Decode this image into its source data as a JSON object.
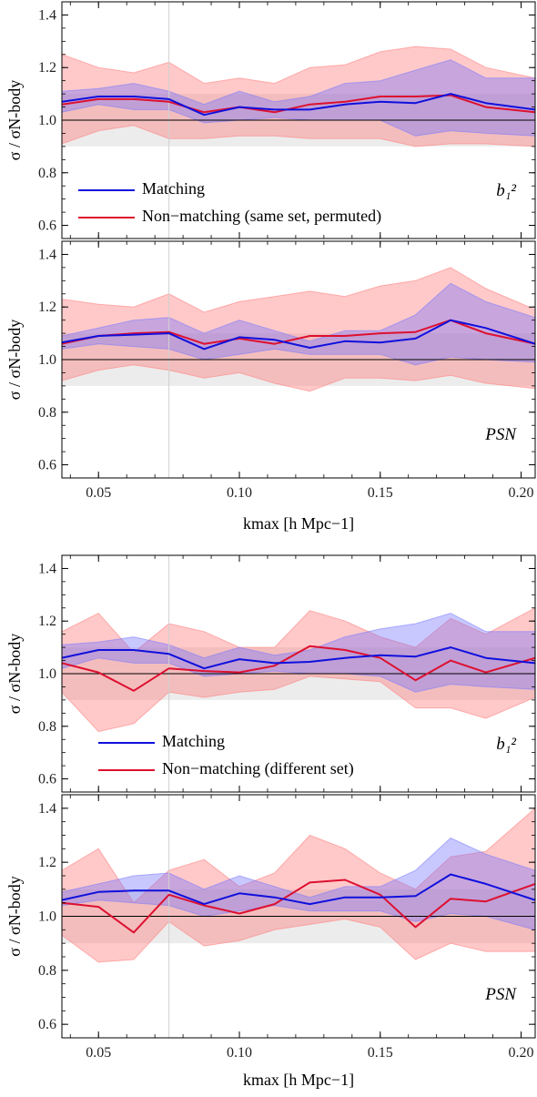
{
  "chart_data": [
    {
      "type": "line",
      "panel_label": "b₁²",
      "ylabel": "σ / σN-body",
      "xlim": [
        0.037,
        0.205
      ],
      "ylim": [
        0.55,
        1.45
      ],
      "xticks": [
        "0.05",
        "0.10",
        "0.15",
        "0.20"
      ],
      "yticks": [
        "0.6",
        "0.8",
        "1.0",
        "1.2",
        "1.4"
      ],
      "x": [
        0.037,
        0.05,
        0.0625,
        0.075,
        0.0875,
        0.1,
        0.1125,
        0.125,
        0.1375,
        0.15,
        0.1625,
        0.175,
        0.1875,
        0.205
      ],
      "legend": {
        "position": "lower-left",
        "entries": [
          "Matching",
          "Non−matching (same set, permuted)"
        ]
      },
      "series": [
        {
          "name": "Matching",
          "color": "#1010dd",
          "values": [
            1.07,
            1.09,
            1.09,
            1.08,
            1.02,
            1.05,
            1.04,
            1.04,
            1.06,
            1.07,
            1.065,
            1.1,
            1.065,
            1.04
          ],
          "band_upper": [
            1.11,
            1.12,
            1.14,
            1.11,
            1.06,
            1.11,
            1.07,
            1.09,
            1.14,
            1.15,
            1.19,
            1.23,
            1.16,
            1.16
          ],
          "band_lower": [
            1.03,
            1.06,
            1.04,
            1.04,
            0.99,
            1.0,
            1.01,
            1.0,
            1.0,
            1.0,
            0.94,
            0.96,
            0.95,
            0.94
          ]
        },
        {
          "name": "Non−matching (same set, permuted)",
          "color": "#dd1030",
          "values": [
            1.06,
            1.08,
            1.08,
            1.07,
            1.03,
            1.05,
            1.03,
            1.06,
            1.07,
            1.09,
            1.09,
            1.095,
            1.05,
            1.03
          ],
          "band_upper": [
            1.25,
            1.2,
            1.18,
            1.22,
            1.14,
            1.16,
            1.14,
            1.2,
            1.21,
            1.26,
            1.28,
            1.27,
            1.2,
            1.16
          ],
          "band_lower": [
            0.91,
            0.96,
            0.98,
            0.93,
            0.93,
            0.94,
            0.94,
            0.93,
            0.93,
            0.93,
            0.9,
            0.91,
            0.91,
            0.9
          ]
        }
      ],
      "reference_line": 1.0,
      "grey_band": [
        0.9,
        1.1
      ],
      "vertical_marker": 0.075
    },
    {
      "type": "line",
      "panel_label": "PSN",
      "ylabel": "σ / σN-body",
      "xlabel": "kmax [h Mpc−1]",
      "xlim": [
        0.037,
        0.205
      ],
      "ylim": [
        0.55,
        1.45
      ],
      "xticks": [
        "0.05",
        "0.10",
        "0.15",
        "0.20"
      ],
      "yticks": [
        "0.6",
        "0.8",
        "1.0",
        "1.2",
        "1.4"
      ],
      "x": [
        0.037,
        0.05,
        0.0625,
        0.075,
        0.0875,
        0.1,
        0.1125,
        0.125,
        0.1375,
        0.15,
        0.1625,
        0.175,
        0.1875,
        0.205
      ],
      "series": [
        {
          "name": "Matching",
          "color": "#1010dd",
          "values": [
            1.065,
            1.09,
            1.095,
            1.1,
            1.04,
            1.085,
            1.075,
            1.045,
            1.07,
            1.065,
            1.08,
            1.15,
            1.12,
            1.06
          ],
          "band_upper": [
            1.09,
            1.12,
            1.15,
            1.16,
            1.1,
            1.15,
            1.11,
            1.07,
            1.11,
            1.11,
            1.17,
            1.29,
            1.22,
            1.16
          ],
          "band_lower": [
            1.04,
            1.06,
            1.05,
            1.04,
            1.0,
            1.02,
            1.04,
            1.02,
            1.02,
            1.02,
            0.98,
            1.01,
            1.0,
            0.99
          ]
        },
        {
          "name": "Non−matching (same set, permuted)",
          "color": "#dd1030",
          "values": [
            1.06,
            1.09,
            1.1,
            1.105,
            1.06,
            1.08,
            1.06,
            1.09,
            1.09,
            1.1,
            1.105,
            1.15,
            1.1,
            1.06
          ],
          "band_upper": [
            1.23,
            1.21,
            1.2,
            1.25,
            1.18,
            1.22,
            1.24,
            1.26,
            1.24,
            1.28,
            1.3,
            1.35,
            1.27,
            1.19
          ],
          "band_lower": [
            0.92,
            0.96,
            0.98,
            0.96,
            0.93,
            0.95,
            0.91,
            0.88,
            0.93,
            0.93,
            0.92,
            0.94,
            0.91,
            0.89
          ]
        }
      ],
      "reference_line": 1.0,
      "grey_band": [
        0.9,
        1.1
      ],
      "vertical_marker": 0.075
    },
    {
      "type": "line",
      "panel_label": "b₁²",
      "ylabel": "σ / σN-body",
      "xlim": [
        0.037,
        0.205
      ],
      "ylim": [
        0.55,
        1.45
      ],
      "xticks": [
        "0.05",
        "0.10",
        "0.15",
        "0.20"
      ],
      "yticks": [
        "0.6",
        "0.8",
        "1.0",
        "1.2",
        "1.4"
      ],
      "x": [
        0.037,
        0.05,
        0.0625,
        0.075,
        0.0875,
        0.1,
        0.1125,
        0.125,
        0.1375,
        0.15,
        0.1625,
        0.175,
        0.1875,
        0.205
      ],
      "legend": {
        "position": "lower-left",
        "entries": [
          "Matching",
          "Non−matching (different set)"
        ]
      },
      "series": [
        {
          "name": "Matching",
          "color": "#1010dd",
          "values": [
            1.06,
            1.09,
            1.09,
            1.075,
            1.02,
            1.055,
            1.04,
            1.045,
            1.06,
            1.07,
            1.065,
            1.1,
            1.06,
            1.04
          ],
          "band_upper": [
            1.11,
            1.12,
            1.14,
            1.11,
            1.06,
            1.1,
            1.07,
            1.09,
            1.14,
            1.17,
            1.19,
            1.23,
            1.16,
            1.16
          ],
          "band_lower": [
            1.02,
            1.06,
            1.04,
            1.04,
            0.99,
            1.0,
            1.01,
            1.0,
            1.0,
            0.99,
            0.93,
            0.96,
            0.95,
            0.94
          ]
        },
        {
          "name": "Non−matching (different set)",
          "color": "#dd1030",
          "values": [
            1.04,
            1.005,
            0.935,
            1.02,
            1.01,
            1.005,
            1.03,
            1.105,
            1.09,
            1.06,
            0.975,
            1.05,
            1.005,
            1.06
          ],
          "band_upper": [
            1.16,
            1.23,
            1.08,
            1.19,
            1.16,
            1.1,
            1.1,
            1.24,
            1.2,
            1.14,
            1.1,
            1.21,
            1.15,
            1.25
          ],
          "band_lower": [
            0.93,
            0.78,
            0.81,
            0.93,
            0.91,
            0.93,
            0.94,
            0.99,
            0.98,
            0.97,
            0.87,
            0.87,
            0.83,
            0.91
          ]
        }
      ],
      "reference_line": 1.0,
      "grey_band": [
        0.9,
        1.1
      ],
      "vertical_marker": 0.075
    },
    {
      "type": "line",
      "panel_label": "PSN",
      "ylabel": "σ / σN-body",
      "xlabel": "kmax [h Mpc−1]",
      "xlim": [
        0.037,
        0.205
      ],
      "ylim": [
        0.55,
        1.45
      ],
      "xticks": [
        "0.05",
        "0.10",
        "0.15",
        "0.20"
      ],
      "yticks": [
        "0.6",
        "0.8",
        "1.0",
        "1.2",
        "1.4"
      ],
      "x": [
        0.037,
        0.05,
        0.0625,
        0.075,
        0.0875,
        0.1,
        0.1125,
        0.125,
        0.1375,
        0.15,
        0.1625,
        0.175,
        0.1875,
        0.205
      ],
      "series": [
        {
          "name": "Matching",
          "color": "#1010dd",
          "values": [
            1.06,
            1.09,
            1.095,
            1.095,
            1.045,
            1.085,
            1.07,
            1.045,
            1.07,
            1.07,
            1.075,
            1.155,
            1.12,
            1.06
          ],
          "band_upper": [
            1.09,
            1.12,
            1.15,
            1.16,
            1.1,
            1.15,
            1.11,
            1.07,
            1.11,
            1.11,
            1.17,
            1.29,
            1.23,
            1.17
          ],
          "band_lower": [
            1.04,
            1.06,
            1.05,
            1.04,
            1.0,
            1.02,
            1.04,
            1.02,
            1.02,
            1.02,
            0.98,
            1.01,
            1.0,
            0.95
          ]
        },
        {
          "name": "Non−matching (different set)",
          "color": "#dd1030",
          "values": [
            1.05,
            1.035,
            0.94,
            1.08,
            1.04,
            1.01,
            1.045,
            1.125,
            1.135,
            1.08,
            0.96,
            1.065,
            1.055,
            1.12
          ],
          "band_upper": [
            1.17,
            1.25,
            1.05,
            1.17,
            1.21,
            1.11,
            1.16,
            1.3,
            1.25,
            1.16,
            1.1,
            1.22,
            1.24,
            1.4
          ],
          "band_lower": [
            0.93,
            0.83,
            0.84,
            0.98,
            0.89,
            0.91,
            0.95,
            0.97,
            0.99,
            0.96,
            0.84,
            0.9,
            0.87,
            0.87
          ]
        }
      ],
      "reference_line": 1.0,
      "grey_band": [
        0.9,
        1.1
      ],
      "vertical_marker": 0.075
    }
  ]
}
